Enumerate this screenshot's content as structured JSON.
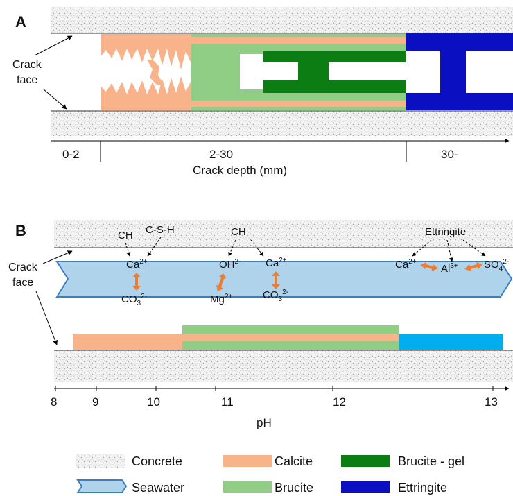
{
  "panel_a": {
    "label": "A",
    "crack_face_line1": "Crack",
    "crack_face_line2": "face",
    "zones": [
      "0-2",
      "2-30",
      "30-"
    ],
    "axis_title": "Crack depth (mm)"
  },
  "panel_b": {
    "label": "B",
    "crack_face_line1": "Crack",
    "crack_face_line2": "face",
    "sources": {
      "ch_left": "CH",
      "csh": "C-S-H",
      "ch_mid": "CH",
      "ettringite": "Ettringite"
    },
    "ions": {
      "ca1": "Ca",
      "ca1_sup": "2+",
      "co3_1": "CO",
      "co3_1_sub": "3",
      "co3_1_sup": "2-",
      "oh": "OH",
      "oh_sup": "2-",
      "mg": "Mg",
      "mg_sup": "2+",
      "ca2": "Ca",
      "ca2_sup": "2+",
      "co3_2": "CO",
      "co3_2_sub": "3",
      "co3_2_sup": "2-",
      "ca3": "Ca",
      "ca3_sup": "2+",
      "al": "Al",
      "al_sup": "3+",
      "so4": "SO",
      "so4_sub": "4",
      "so4_sup": "2-"
    },
    "axis": {
      "ticks": [
        "8",
        "9",
        "10",
        "11",
        "12",
        "13"
      ],
      "title": "pH"
    }
  },
  "legend": {
    "concrete": "Concrete",
    "calcite": "Calcite",
    "brucite_gel": "Brucite - gel",
    "seawater": "Seawater",
    "brucite": "Brucite",
    "ettringite": "Ettringite"
  },
  "colors": {
    "calcite": "#f9b38a",
    "brucite": "#8fce84",
    "brucite_gel": "#0b7d12",
    "ettringite": "#0a10c2",
    "ettringite_b": "#00aeef",
    "seawater_fill": "#aed3ea",
    "seawater_stroke": "#3d7fc4",
    "arrow_orange": "#ed7d31"
  }
}
